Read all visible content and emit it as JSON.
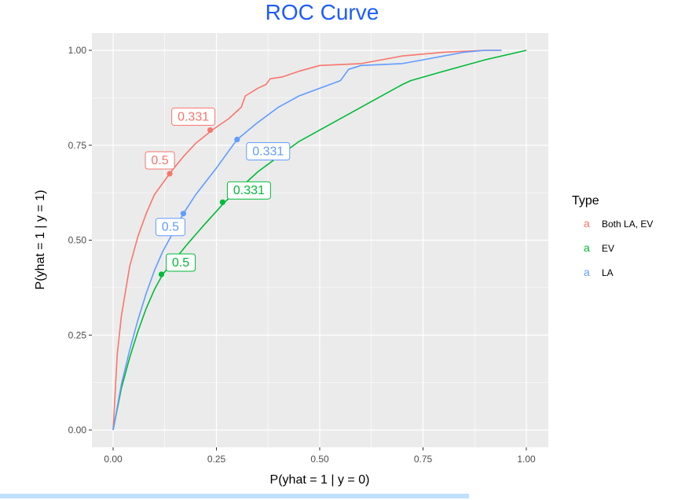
{
  "chart_data": {
    "type": "line",
    "title": "ROC Curve",
    "xlabel": "P(yhat = 1 | y = 0)",
    "ylabel": "P(yhat = 1 | y = 1)",
    "xlim": [
      0,
      1
    ],
    "ylim": [
      0,
      1
    ],
    "x_ticks": [
      "0.00",
      "0.25",
      "0.50",
      "0.75",
      "1.00"
    ],
    "y_ticks": [
      "0.00",
      "0.25",
      "0.50",
      "0.75",
      "1.00"
    ],
    "grid": true,
    "legend": {
      "title": "Type",
      "position": "right",
      "key_glyph": "a"
    },
    "series": [
      {
        "name": "Both LA, EV",
        "color": "#F8766D",
        "x": [
          0.0,
          0.01,
          0.02,
          0.04,
          0.06,
          0.08,
          0.1,
          0.12,
          0.14,
          0.17,
          0.2,
          0.24,
          0.28,
          0.31,
          0.32,
          0.35,
          0.37,
          0.38,
          0.41,
          0.45,
          0.5,
          0.6,
          0.7,
          0.8,
          0.9,
          0.94
        ],
        "y": [
          0.0,
          0.2,
          0.3,
          0.43,
          0.51,
          0.57,
          0.62,
          0.65,
          0.68,
          0.72,
          0.755,
          0.79,
          0.82,
          0.85,
          0.88,
          0.9,
          0.91,
          0.925,
          0.93,
          0.945,
          0.96,
          0.965,
          0.985,
          0.995,
          1.0,
          1.0
        ]
      },
      {
        "name": "EV",
        "color": "#00BA38",
        "x": [
          0.0,
          0.02,
          0.04,
          0.06,
          0.08,
          0.1,
          0.12,
          0.15,
          0.18,
          0.22,
          0.27,
          0.31,
          0.35,
          0.4,
          0.45,
          0.5,
          0.55,
          0.6,
          0.7,
          0.72,
          0.8,
          0.9,
          1.0
        ],
        "y": [
          0.0,
          0.11,
          0.19,
          0.26,
          0.32,
          0.37,
          0.41,
          0.45,
          0.49,
          0.54,
          0.6,
          0.64,
          0.68,
          0.72,
          0.76,
          0.79,
          0.82,
          0.85,
          0.91,
          0.92,
          0.945,
          0.975,
          1.0
        ]
      },
      {
        "name": "LA",
        "color": "#619CFF",
        "x": [
          0.0,
          0.02,
          0.04,
          0.06,
          0.08,
          0.1,
          0.12,
          0.14,
          0.17,
          0.2,
          0.25,
          0.3,
          0.35,
          0.4,
          0.45,
          0.5,
          0.55,
          0.57,
          0.6,
          0.7,
          0.75,
          0.8,
          0.85,
          0.9,
          0.94
        ],
        "y": [
          0.0,
          0.12,
          0.21,
          0.29,
          0.36,
          0.42,
          0.47,
          0.51,
          0.57,
          0.62,
          0.69,
          0.765,
          0.81,
          0.85,
          0.88,
          0.9,
          0.92,
          0.95,
          0.96,
          0.965,
          0.975,
          0.985,
          0.995,
          1.0,
          1.0
        ]
      }
    ],
    "annotations": [
      {
        "series": "Both LA, EV",
        "x": 0.137,
        "y": 0.675,
        "label": "0.5",
        "label_pos": "upper-left"
      },
      {
        "series": "Both LA, EV",
        "x": 0.235,
        "y": 0.79,
        "label": "0.331",
        "label_pos": "upper-left"
      },
      {
        "series": "EV",
        "x": 0.117,
        "y": 0.41,
        "label": "0.5",
        "label_pos": "upper-right"
      },
      {
        "series": "EV",
        "x": 0.265,
        "y": 0.6,
        "label": "0.331",
        "label_pos": "upper-right"
      },
      {
        "series": "LA",
        "x": 0.17,
        "y": 0.57,
        "label": "0.5",
        "label_pos": "lower-left"
      },
      {
        "series": "LA",
        "x": 0.3,
        "y": 0.765,
        "label": "0.331",
        "label_pos": "lower-right"
      }
    ]
  }
}
